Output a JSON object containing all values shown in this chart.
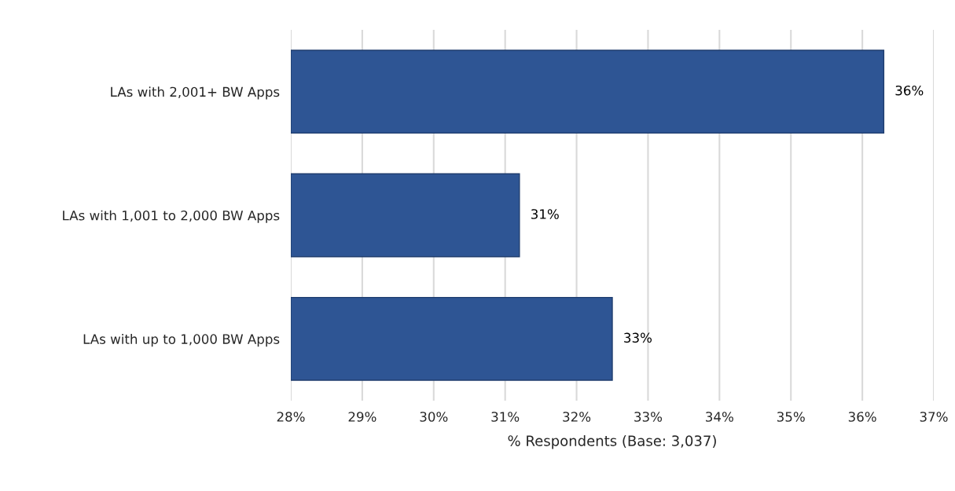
{
  "chart_data": {
    "type": "bar",
    "orientation": "horizontal",
    "categories": [
      "LAs with 2,001+ BW Apps",
      "LAs with 1,001 to 2,000 BW Apps",
      "LAs with up to 1,000 BW Apps"
    ],
    "values": [
      36.3,
      31.2,
      32.5
    ],
    "value_labels": [
      "36%",
      "31%",
      "33%"
    ],
    "color": "#2e5594",
    "xlabel": "% Respondents (Base: 3,037)",
    "xlim": [
      28,
      37
    ],
    "xticks": [
      {
        "value": 28,
        "label": "28%"
      },
      {
        "value": 29,
        "label": "29%"
      },
      {
        "value": 30,
        "label": "30%"
      },
      {
        "value": 31,
        "label": "31%"
      },
      {
        "value": 32,
        "label": "32%"
      },
      {
        "value": 33,
        "label": "33%"
      },
      {
        "value": 34,
        "label": "34%"
      },
      {
        "value": 35,
        "label": "35%"
      },
      {
        "value": 36,
        "label": "36%"
      },
      {
        "value": 37,
        "label": "37%"
      }
    ],
    "grid": "x",
    "legend": false
  }
}
